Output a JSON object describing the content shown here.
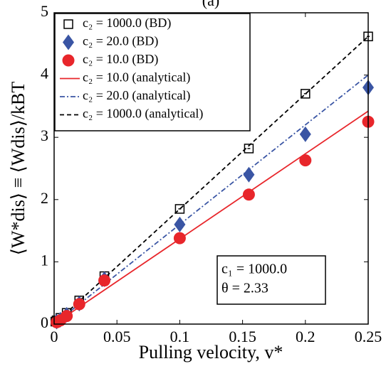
{
  "chart_data": {
    "type": "scatter",
    "title": "(a)",
    "xlabel": "Pulling velocity, v*",
    "ylabel": "⟨W*dis⟩ ≡ ⟨Wdis⟩/kBT",
    "xlim": [
      0,
      0.25
    ],
    "xticks": [
      0,
      0.05,
      0.1,
      0.15,
      0.2,
      0.25
    ],
    "ylim": [
      0,
      5
    ],
    "yticks": [
      0,
      1,
      2,
      3,
      4,
      5
    ],
    "annotations": [
      "c₁ = 1000.0",
      "θ = 2.33"
    ],
    "series": [
      {
        "name": "c₂ = 1000.0 (BD)",
        "color": "#000000",
        "marker": "square",
        "x": [
          0.001,
          0.002,
          0.005,
          0.01,
          0.02,
          0.04,
          0.1,
          0.155,
          0.2,
          0.25
        ],
        "values": [
          0.04,
          0.06,
          0.1,
          0.18,
          0.38,
          0.77,
          1.85,
          2.82,
          3.7,
          4.62
        ]
      },
      {
        "name": "c₂ = 20.0 (BD)",
        "color": "#3a55a4",
        "marker": "diamond",
        "x": [
          0.002,
          0.005,
          0.01,
          0.02,
          0.04,
          0.1,
          0.155,
          0.2,
          0.25
        ],
        "values": [
          0.04,
          0.07,
          0.15,
          0.33,
          0.72,
          1.6,
          2.4,
          3.05,
          3.8
        ]
      },
      {
        "name": "c₂ = 10.0 (BD)",
        "color": "#e8262b",
        "marker": "circle",
        "x": [
          0.002,
          0.005,
          0.01,
          0.02,
          0.04,
          0.1,
          0.155,
          0.2,
          0.25
        ],
        "values": [
          0.03,
          0.06,
          0.13,
          0.32,
          0.7,
          1.38,
          2.08,
          2.63,
          3.25
        ]
      },
      {
        "name": "c₂ = 10.0 (analytical)",
        "color": "#e8262b",
        "line_style": "solid",
        "x": [
          0,
          0.25
        ],
        "values": [
          0,
          3.42
        ]
      },
      {
        "name": "c₂ = 20.0 (analytical)",
        "color": "#3a55a4",
        "line_style": "dashdot",
        "x": [
          0,
          0.25
        ],
        "values": [
          0,
          4.0
        ]
      },
      {
        "name": "c₂ = 1000.0 (analytical)",
        "color": "#000000",
        "line_style": "dashed",
        "x": [
          0,
          0.25
        ],
        "values": [
          0,
          4.62
        ]
      }
    ]
  }
}
